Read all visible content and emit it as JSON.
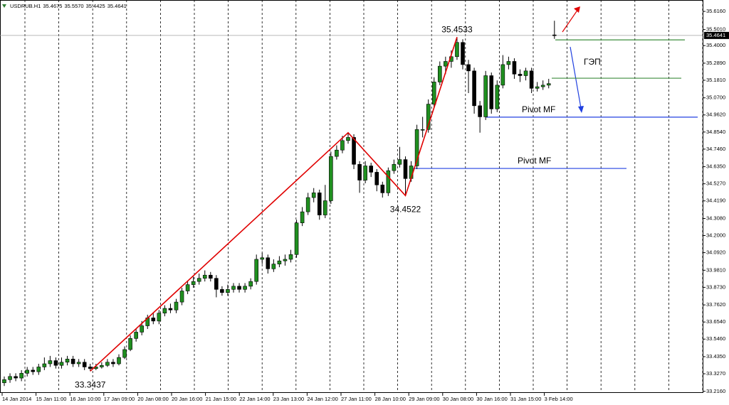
{
  "chart_data": {
    "type": "candlestick",
    "header": {
      "symbol": "USDRUB.H1",
      "ohlc": [
        "35.4675",
        "35.5570",
        "35.4425",
        "35.4641"
      ]
    },
    "open": [
      33.27,
      33.29,
      33.31,
      33.3,
      33.33,
      33.35,
      33.34,
      33.37,
      33.39,
      33.41,
      33.38,
      33.4,
      33.42,
      33.39,
      33.4,
      33.37,
      33.36,
      33.37,
      33.38,
      33.4,
      33.39,
      33.43,
      33.48,
      33.55,
      33.59,
      33.63,
      33.68,
      33.66,
      33.71,
      33.74,
      33.73,
      33.78,
      33.85,
      33.89,
      33.91,
      33.93,
      33.95,
      33.93,
      33.86,
      33.84,
      33.86,
      33.88,
      33.86,
      33.88,
      33.91,
      34.05,
      34.06,
      33.99,
      34.02,
      34.04,
      34.05,
      34.08,
      34.28,
      34.35,
      34.44,
      34.47,
      34.33,
      34.42,
      34.7,
      34.74,
      34.8,
      34.82,
      34.65,
      34.55,
      34.64,
      34.6,
      34.52,
      34.47,
      34.61,
      34.65,
      34.68,
      34.56,
      34.64,
      34.87,
      34.87,
      35.03,
      35.17,
      35.27,
      35.3,
      35.33,
      35.42,
      35.28,
      35.24,
      35.02,
      34.95,
      35.21,
      35.0,
      35.15,
      35.28,
      35.3,
      35.22,
      35.21,
      35.24,
      35.13,
      35.14,
      35.15,
      35.4675
    ],
    "high": [
      33.31,
      33.33,
      33.33,
      33.35,
      33.37,
      33.37,
      33.39,
      33.43,
      33.44,
      33.43,
      33.43,
      33.44,
      33.44,
      33.42,
      33.42,
      33.39,
      33.39,
      33.4,
      33.42,
      33.42,
      33.45,
      33.5,
      33.57,
      33.61,
      33.66,
      33.7,
      33.71,
      33.73,
      33.76,
      33.77,
      33.8,
      33.87,
      33.91,
      33.94,
      33.96,
      33.98,
      33.97,
      33.95,
      33.88,
      33.89,
      33.9,
      33.9,
      33.9,
      33.93,
      34.08,
      34.09,
      34.08,
      34.05,
      34.07,
      34.08,
      34.11,
      34.3,
      34.38,
      34.47,
      34.5,
      34.49,
      34.52,
      34.73,
      34.77,
      34.83,
      34.85,
      34.84,
      34.67,
      34.67,
      34.66,
      34.62,
      34.54,
      34.63,
      34.68,
      34.76,
      34.7,
      34.67,
      34.9,
      34.95,
      35.06,
      35.2,
      35.3,
      35.33,
      35.37,
      35.4533,
      35.44,
      35.31,
      35.26,
      35.05,
      35.24,
      35.23,
      35.18,
      35.34,
      35.33,
      35.32,
      35.25,
      35.26,
      35.26,
      35.17,
      35.18,
      35.19,
      35.557
    ],
    "low": [
      33.25,
      33.27,
      33.28,
      33.28,
      33.31,
      33.32,
      33.32,
      33.35,
      33.37,
      33.36,
      33.36,
      33.38,
      33.37,
      33.37,
      33.35,
      33.3437,
      33.35,
      33.36,
      33.37,
      33.37,
      33.38,
      33.42,
      33.47,
      33.53,
      33.57,
      33.61,
      33.64,
      33.64,
      33.69,
      33.71,
      33.71,
      33.76,
      33.83,
      33.87,
      33.89,
      33.91,
      33.91,
      33.81,
      33.82,
      33.82,
      33.84,
      33.84,
      33.84,
      33.86,
      33.89,
      34.02,
      33.96,
      33.97,
      34.0,
      34.01,
      34.03,
      34.06,
      34.26,
      34.33,
      34.41,
      34.3,
      34.31,
      34.4,
      34.68,
      34.72,
      34.78,
      34.62,
      34.47,
      34.53,
      34.57,
      34.48,
      34.44,
      34.45,
      34.59,
      34.63,
      34.4522,
      34.54,
      34.62,
      34.82,
      34.85,
      35.01,
      35.15,
      35.22,
      35.26,
      35.31,
      35.25,
      35.1,
      34.97,
      34.85,
      34.93,
      34.97,
      34.98,
      35.13,
      35.25,
      35.19,
      35.17,
      35.18,
      35.1,
      35.11,
      35.12,
      35.13,
      35.4425
    ],
    "close": [
      33.29,
      33.31,
      33.3,
      33.33,
      33.35,
      33.34,
      33.37,
      33.39,
      33.41,
      33.38,
      33.4,
      33.42,
      33.39,
      33.4,
      33.37,
      33.36,
      33.37,
      33.38,
      33.4,
      33.39,
      33.43,
      33.48,
      33.55,
      33.59,
      33.63,
      33.68,
      33.66,
      33.71,
      33.74,
      33.73,
      33.78,
      33.85,
      33.89,
      33.91,
      33.93,
      33.95,
      33.93,
      33.86,
      33.84,
      33.86,
      33.88,
      33.86,
      33.88,
      33.91,
      34.05,
      34.06,
      33.99,
      34.02,
      34.04,
      34.05,
      34.08,
      34.28,
      34.35,
      34.44,
      34.47,
      34.33,
      34.42,
      34.7,
      34.74,
      34.8,
      34.82,
      34.65,
      34.55,
      34.64,
      34.6,
      34.52,
      34.47,
      34.61,
      34.65,
      34.68,
      34.56,
      34.64,
      34.87,
      34.87,
      35.03,
      35.17,
      35.27,
      35.3,
      35.33,
      35.42,
      35.28,
      35.24,
      35.02,
      34.95,
      35.21,
      35.0,
      35.15,
      35.28,
      35.3,
      35.22,
      35.21,
      35.24,
      35.13,
      35.14,
      35.15,
      35.16,
      35.4641
    ],
    "up_color": "#1f8f1f",
    "down_color": "#000000",
    "x_labels": [
      "14 Jan 2014",
      "15 Jan 11:00",
      "16 Jan 10:00",
      "17 Jan 09:00",
      "20 Jan 08:00",
      "20 Jan 16:00",
      "21 Jan 15:00",
      "22 Jan 14:00",
      "23 Jan 13:00",
      "24 Jan 12:00",
      "27 Jan 11:00",
      "28 Jan 10:00",
      "29 Jan 09:00",
      "30 Jan 08:00",
      "30 Jan 16:00",
      "31 Jan 15:00",
      "3 Feb 14:00"
    ],
    "ylim": [
      33.206,
      35.688
    ],
    "yticks": [
      {
        "value": 35.616,
        "label": "35.6160"
      },
      {
        "value": 35.501,
        "label": "35.5010"
      },
      {
        "value": 35.4,
        "label": "35.4000"
      },
      {
        "value": 35.289,
        "label": "35.2890"
      },
      {
        "value": 35.181,
        "label": "35.1810"
      },
      {
        "value": 35.07,
        "label": "35.0700"
      },
      {
        "value": 34.962,
        "label": "34.9620"
      },
      {
        "value": 34.854,
        "label": "34.8540"
      },
      {
        "value": 34.746,
        "label": "34.7460"
      },
      {
        "value": 34.635,
        "label": "34.6350"
      },
      {
        "value": 34.527,
        "label": "34.5270"
      },
      {
        "value": 34.419,
        "label": "34.4190"
      },
      {
        "value": 34.308,
        "label": "34.3080"
      },
      {
        "value": 34.2,
        "label": "34.2000"
      },
      {
        "value": 34.092,
        "label": "34.0920"
      },
      {
        "value": 33.981,
        "label": "33.9810"
      },
      {
        "value": 33.873,
        "label": "33.8730"
      },
      {
        "value": 33.762,
        "label": "33.7620"
      },
      {
        "value": 33.654,
        "label": "33.6540"
      },
      {
        "value": 33.546,
        "label": "33.5460"
      },
      {
        "value": 33.435,
        "label": "33.4350"
      },
      {
        "value": 33.327,
        "label": "33.3270"
      },
      {
        "value": 33.216,
        "label": "33.2160"
      }
    ],
    "grid": true,
    "price_line": {
      "value": 35.4641,
      "label": "35.4641",
      "color": "#a0a0a0"
    },
    "zigzag": {
      "color": "#e00000",
      "x": [
        15,
        60,
        70,
        79
      ],
      "values": [
        33.3437,
        34.85,
        34.4522,
        35.4533
      ]
    },
    "annotations": [
      {
        "x": 15,
        "value": 33.3437,
        "pos": "below"
      },
      {
        "x": 70,
        "value": 34.4522,
        "pos": "below"
      },
      {
        "x": 79,
        "value": 35.4533,
        "pos": "above"
      }
    ],
    "gap": {
      "label": "ГЭП",
      "values": [
        35.436,
        35.194
      ],
      "color": "#3c8c3c"
    },
    "pivots": {
      "color": "#2040e0",
      "levels": [
        {
          "label": "Pivot MF",
          "value": 34.948
        },
        {
          "label": "Pivot MF",
          "value": 34.624
        }
      ]
    }
  }
}
